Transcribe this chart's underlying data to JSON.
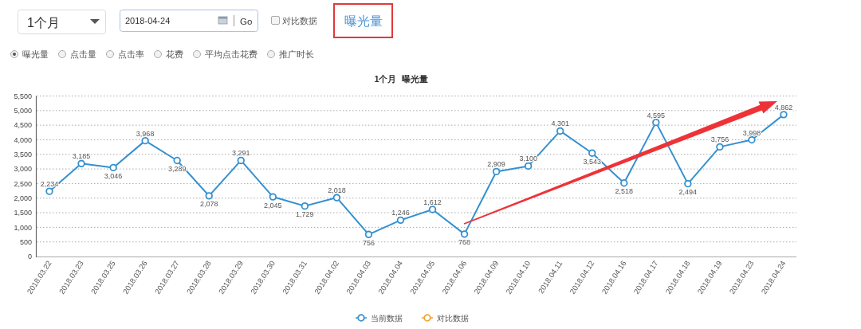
{
  "chart_data": {
    "type": "line",
    "title": "1个月  曝光量",
    "categories": [
      "2018.03.22",
      "2018.03.23",
      "2018.03.25",
      "2018.03.26",
      "2018.03.27",
      "2018.03.28",
      "2018.03.29",
      "2018.03.30",
      "2018.03.31",
      "2018.04.02",
      "2018.04.03",
      "2018.04.04",
      "2018.04.05",
      "2018.04.06",
      "2018.04.09",
      "2018.04.10",
      "2018.04.11",
      "2018.04.12",
      "2018.04.16",
      "2018.04.17",
      "2018.04.18",
      "2018.04.19",
      "2018.04.23",
      "2018.04.24"
    ],
    "series": [
      {
        "name": "当前数据",
        "color": "#3490d0",
        "values": [
          2234,
          3185,
          3046,
          3968,
          3289,
          2078,
          3291,
          2045,
          1729,
          2018,
          756,
          1246,
          1612,
          768,
          2909,
          3100,
          4301,
          3543,
          2518,
          4595,
          2494,
          3756,
          3998,
          4862
        ],
        "value_labels": [
          "2,234",
          "3,185",
          "3,046",
          "3,968",
          "3,289",
          "2,078",
          "3,291",
          "2,045",
          "1,729",
          "2,018",
          "756",
          "1,246",
          "1,612",
          "768",
          "2,909",
          "3,100",
          "4,301",
          "3,543",
          "2,518",
          "4,595",
          "2,494",
          "3,756",
          "3,998",
          "4,862"
        ]
      },
      {
        "name": "对比数据",
        "color": "#f4a42c",
        "values": [
          null,
          null,
          null,
          null,
          null,
          null,
          null,
          null,
          null,
          null,
          null,
          null,
          null,
          null,
          null,
          null,
          null,
          null,
          null,
          null,
          null,
          null,
          null,
          null
        ]
      }
    ],
    "ylim": [
      0,
      5500
    ],
    "yticks": [
      0,
      500,
      {
        "value": 1000,
        "label": "1,000"
      },
      {
        "value": 1500,
        "label": "1,500"
      },
      {
        "value": 2000,
        "label": "2,000"
      },
      {
        "value": 2500,
        "label": "2,500"
      },
      {
        "value": 3000,
        "label": "3,000"
      },
      {
        "value": 3500,
        "label": "3,500"
      },
      {
        "value": 4000,
        "label": "4,000"
      },
      {
        "value": 4500,
        "label": "4,500"
      },
      {
        "value": 5000,
        "label": "5,000"
      },
      {
        "value": 5500,
        "label": "5,500"
      }
    ],
    "grid": "y",
    "legend": "bottom",
    "marker": "circle",
    "annotations": [
      "1个月",
      "2018-04-24",
      "Go",
      "对比数据",
      "曝光量",
      "曝光量",
      "点击量",
      "点击率",
      "花费",
      "平均点击花费",
      "推广时长"
    ]
  }
}
